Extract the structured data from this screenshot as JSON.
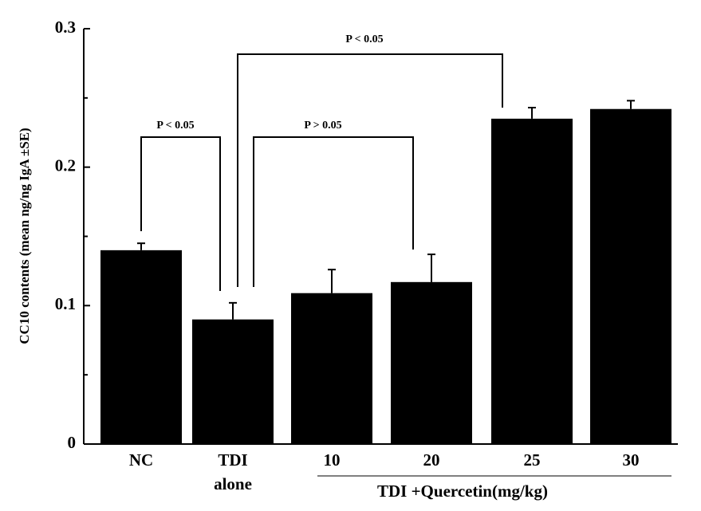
{
  "chart_data": {
    "type": "bar",
    "y_label": "CC10 contents (mean ng/ng IgA ±SE)",
    "categories": [
      "NC",
      "TDI alone",
      "10",
      "20",
      "25",
      "30"
    ],
    "group_label": "TDI +Quercetin(mg/kg)",
    "values": [
      0.14,
      0.09,
      0.109,
      0.117,
      0.235,
      0.242
    ],
    "errors": [
      0.005,
      0.012,
      0.017,
      0.02,
      0.008,
      0.006
    ],
    "color": "#000000",
    "ylim": [
      0,
      0.3
    ],
    "yticks": [
      0,
      0.1,
      0.2,
      0.3
    ],
    "annotations": [
      "P < 0.05",
      "P > 0.05",
      "P < 0.05"
    ]
  }
}
